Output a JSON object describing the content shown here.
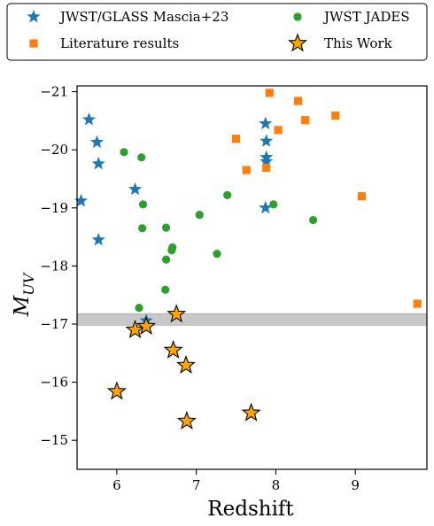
{
  "chart_data": {
    "type": "scatter",
    "xlabel": "Redshift",
    "ylabel_main": "M",
    "ylabel_sub": "UV",
    "xlim": [
      5.5,
      9.9
    ],
    "ylim": [
      -14.5,
      -21.1
    ],
    "y_inverted": true,
    "grid": false,
    "legend_placement": "top (above plot, 2 columns)",
    "x_ticks": [
      6,
      7,
      8,
      9
    ],
    "x_tick_labels": [
      "6",
      "7",
      "8",
      "9"
    ],
    "y_ticks": [
      -21,
      -20,
      -19,
      -18,
      -17,
      -16,
      -15
    ],
    "y_tick_labels": [
      "−21",
      "−20",
      "−19",
      "−18",
      "−17",
      "−16",
      "−15"
    ],
    "shaded_band": {
      "y_from": -16.98,
      "y_to": -17.18,
      "color": "#c8c8c8"
    },
    "series": [
      {
        "name": "JWST/GLASS Mascia+23",
        "marker": "star",
        "color": "#1f77b4",
        "points": [
          [
            5.55,
            -19.12
          ],
          [
            5.65,
            -20.52
          ],
          [
            5.75,
            -20.13
          ],
          [
            5.77,
            -19.76
          ],
          [
            5.77,
            -18.45
          ],
          [
            6.23,
            -19.32
          ],
          [
            6.37,
            -17.06
          ],
          [
            7.87,
            -20.45
          ],
          [
            7.88,
            -20.15
          ],
          [
            7.88,
            -19.87
          ],
          [
            7.88,
            -19.8
          ],
          [
            7.87,
            -19.0
          ]
        ]
      },
      {
        "name": "Literature results",
        "marker": "square",
        "color": "#ff7f0e",
        "points": [
          [
            7.5,
            -20.19
          ],
          [
            7.63,
            -19.65
          ],
          [
            7.88,
            -19.69
          ],
          [
            7.92,
            -20.98
          ],
          [
            8.03,
            -20.34
          ],
          [
            8.28,
            -20.84
          ],
          [
            8.37,
            -20.51
          ],
          [
            8.75,
            -20.59
          ],
          [
            9.08,
            -19.2
          ],
          [
            9.78,
            -17.35
          ]
        ]
      },
      {
        "name": "JWST JADES",
        "marker": "circle",
        "color": "#2ca02c",
        "points": [
          [
            6.09,
            -19.96
          ],
          [
            6.28,
            -17.28
          ],
          [
            6.31,
            -19.87
          ],
          [
            6.33,
            -19.06
          ],
          [
            6.32,
            -18.65
          ],
          [
            6.62,
            -18.66
          ],
          [
            6.62,
            -18.11
          ],
          [
            6.61,
            -17.59
          ],
          [
            6.7,
            -18.32
          ],
          [
            6.69,
            -18.27
          ],
          [
            7.04,
            -18.88
          ],
          [
            7.26,
            -18.21
          ],
          [
            7.39,
            -19.22
          ],
          [
            7.97,
            -19.06
          ],
          [
            8.47,
            -18.79
          ]
        ]
      },
      {
        "name": "This Work",
        "marker": "star",
        "color": "#ffa500",
        "edgecolor": "#000000",
        "points": [
          [
            6.0,
            -15.84
          ],
          [
            6.23,
            -16.9
          ],
          [
            6.37,
            -16.96
          ],
          [
            6.75,
            -17.17
          ],
          [
            6.71,
            -16.55
          ],
          [
            6.87,
            -16.29
          ],
          [
            6.88,
            -15.33
          ],
          [
            7.69,
            -15.47
          ]
        ]
      }
    ]
  }
}
